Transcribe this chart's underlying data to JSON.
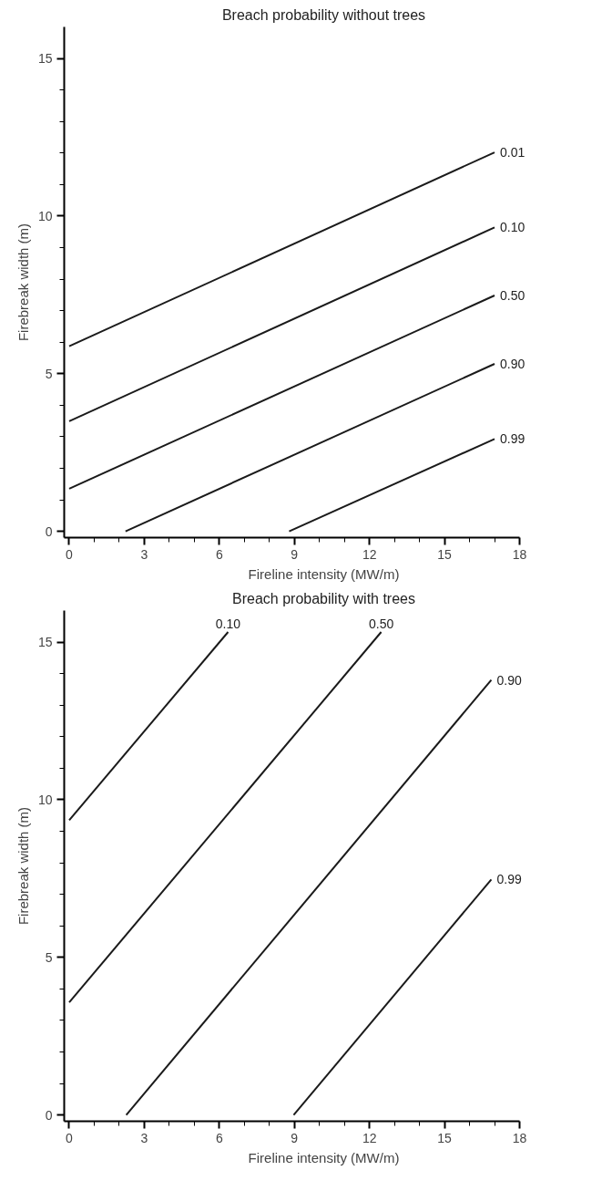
{
  "chart_data": [
    {
      "type": "line",
      "title": "Breach probability without trees",
      "xlabel": "Fireline intensity (MW/m)",
      "ylabel": "Firebreak width (m)",
      "xlim": [
        -0.2,
        18
      ],
      "ylim": [
        -0.2,
        16
      ],
      "xticks": [
        0,
        {
          "value": 1,
          "label": null
        },
        {
          "value": 2,
          "label": null
        },
        3,
        {
          "value": 4,
          "label": null
        },
        {
          "value": 5,
          "label": null
        },
        6,
        {
          "value": 7,
          "label": null
        },
        {
          "value": 8,
          "label": null
        },
        9,
        {
          "value": 10,
          "label": null
        },
        {
          "value": 11,
          "label": null
        },
        12,
        {
          "value": 13,
          "label": null
        },
        {
          "value": 14,
          "label": null
        },
        15,
        {
          "value": 16,
          "label": null
        },
        {
          "value": 17,
          "label": null
        },
        18
      ],
      "yticks": [
        0,
        {
          "value": 1,
          "label": null
        },
        {
          "value": 2,
          "label": null
        },
        {
          "value": 3,
          "label": null
        },
        {
          "value": 4,
          "label": null
        },
        5,
        {
          "value": 6,
          "label": null
        },
        {
          "value": 7,
          "label": null
        },
        {
          "value": 8,
          "label": null
        },
        {
          "value": 9,
          "label": null
        },
        10,
        {
          "value": 11,
          "label": null
        },
        {
          "value": 12,
          "label": null
        },
        {
          "value": 13,
          "label": null
        },
        {
          "value": 14,
          "label": null
        },
        15
      ],
      "grid": false,
      "legend": false,
      "line_style": "solid",
      "series": [
        {
          "name": "0.01",
          "color": "#1a1a1a",
          "x": [
            0,
            17
          ],
          "values": [
            5.87,
            12.02
          ]
        },
        {
          "name": "0.10",
          "color": "#1a1a1a",
          "x": [
            0,
            17
          ],
          "values": [
            3.49,
            9.64
          ]
        },
        {
          "name": "0.50",
          "color": "#1a1a1a",
          "x": [
            0,
            17
          ],
          "values": [
            1.35,
            7.48
          ]
        },
        {
          "name": "0.90",
          "color": "#1a1a1a",
          "x": [
            2.25,
            17
          ],
          "values": [
            0,
            5.31
          ]
        },
        {
          "name": "0.99",
          "color": "#1a1a1a",
          "x": [
            8.79,
            17
          ],
          "values": [
            0,
            2.93
          ]
        }
      ]
    },
    {
      "type": "line",
      "title": "Breach probability with trees",
      "xlabel": "Fireline intensity (MW/m)",
      "ylabel": "Firebreak width (m)",
      "xlim": [
        -0.2,
        18
      ],
      "ylim": [
        -0.2,
        16
      ],
      "xticks": [
        0,
        {
          "value": 1,
          "label": null
        },
        {
          "value": 2,
          "label": null
        },
        3,
        {
          "value": 4,
          "label": null
        },
        {
          "value": 5,
          "label": null
        },
        6,
        {
          "value": 7,
          "label": null
        },
        {
          "value": 8,
          "label": null
        },
        9,
        {
          "value": 10,
          "label": null
        },
        {
          "value": 11,
          "label": null
        },
        12,
        {
          "value": 13,
          "label": null
        },
        {
          "value": 14,
          "label": null
        },
        15,
        {
          "value": 16,
          "label": null
        },
        {
          "value": 17,
          "label": null
        },
        18
      ],
      "yticks": [
        0,
        {
          "value": 1,
          "label": null
        },
        {
          "value": 2,
          "label": null
        },
        {
          "value": 3,
          "label": null
        },
        {
          "value": 4,
          "label": null
        },
        5,
        {
          "value": 6,
          "label": null
        },
        {
          "value": 7,
          "label": null
        },
        {
          "value": 8,
          "label": null
        },
        {
          "value": 9,
          "label": null
        },
        10,
        {
          "value": 11,
          "label": null
        },
        {
          "value": 12,
          "label": null
        },
        {
          "value": 13,
          "label": null
        },
        {
          "value": 14,
          "label": null
        },
        15
      ],
      "grid": false,
      "legend": false,
      "line_style": "solid",
      "series": [
        {
          "name": "0.10",
          "color": "#1a1a1a",
          "x": [
            0,
            6.35
          ],
          "values": [
            9.35,
            15.32
          ]
        },
        {
          "name": "0.50",
          "color": "#1a1a1a",
          "x": [
            0,
            12.47
          ],
          "values": [
            3.57,
            15.32
          ]
        },
        {
          "name": "0.90",
          "color": "#1a1a1a",
          "x": [
            2.28,
            16.87
          ],
          "values": [
            0,
            13.8
          ]
        },
        {
          "name": "0.99",
          "color": "#1a1a1a",
          "x": [
            8.97,
            16.87
          ],
          "values": [
            0,
            7.47
          ]
        }
      ]
    }
  ]
}
